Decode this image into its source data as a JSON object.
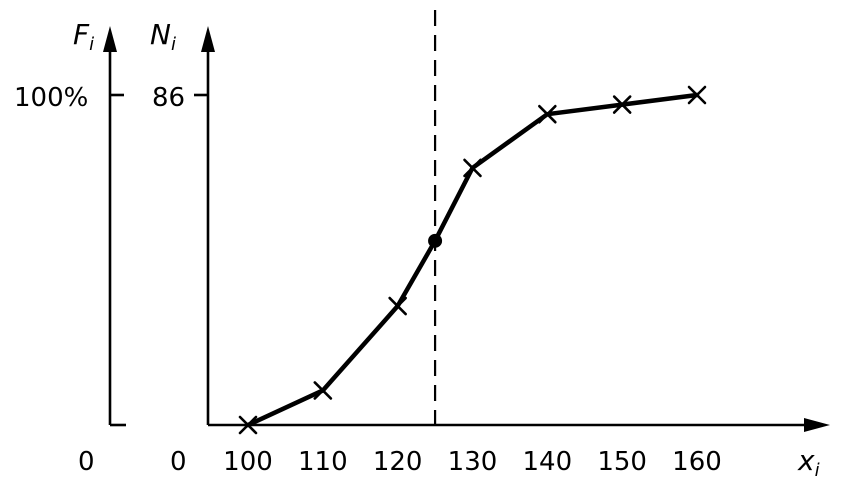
{
  "chart_data": {
    "type": "line",
    "x_axis": {
      "label": "x",
      "label_subscript": "i",
      "ticks": [
        100,
        110,
        120,
        130,
        140,
        150,
        160
      ],
      "range": [
        100,
        160
      ],
      "origin_label": "0"
    },
    "y_axis_left": {
      "label": "F",
      "label_subscript": "i",
      "top_label": "100%",
      "origin_label": "0"
    },
    "y_axis_right": {
      "label": "N",
      "label_subscript": "i",
      "top_label": "86",
      "origin_label": "0",
      "max": 86
    },
    "series": [
      {
        "points": [
          {
            "x": 100,
            "y": 0
          },
          {
            "x": 110,
            "y": 9
          },
          {
            "x": 120,
            "y": 31
          },
          {
            "x": 125,
            "y": 48
          },
          {
            "x": 130,
            "y": 67
          },
          {
            "x": 140,
            "y": 81
          },
          {
            "x": 150,
            "y": 83.5
          },
          {
            "x": 160,
            "y": 86
          }
        ],
        "marker_points": [
          100,
          110,
          120,
          130,
          140,
          150,
          160
        ],
        "dot_points": [
          125
        ]
      }
    ],
    "reference_line": {
      "x": 125,
      "style": "dashed"
    },
    "grid": false
  }
}
